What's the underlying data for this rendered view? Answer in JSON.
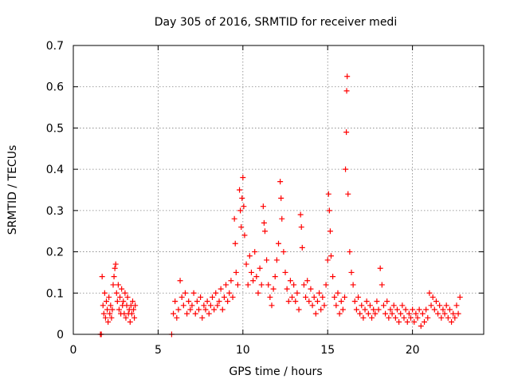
{
  "chart_data": {
    "type": "scatter",
    "title": "Day 305 of 2016, SRMTID for receiver medi",
    "xlabel": "GPS time / hours",
    "ylabel": "SRMTID / TECUs",
    "xlim": [
      0,
      24.2
    ],
    "ylim": [
      0,
      0.7
    ],
    "xticks": [
      0,
      5,
      10,
      15,
      20
    ],
    "xtick_labels": [
      "0",
      "5",
      "10",
      "15",
      "20"
    ],
    "yticks": [
      0,
      0.1,
      0.2,
      0.3,
      0.4,
      0.5,
      0.6,
      0.7
    ],
    "ytick_labels": [
      "0",
      "0.1",
      "0.2",
      "0.3",
      "0.4",
      "0.5",
      "0.6",
      "0.7"
    ],
    "grid": true,
    "marker": "plus",
    "series": [
      {
        "name": "SRMTID",
        "color": "#ff0000",
        "points": [
          [
            1.6,
            0.0
          ],
          [
            1.65,
            0.0
          ],
          [
            1.7,
            0.14
          ],
          [
            1.75,
            0.07
          ],
          [
            1.8,
            0.05
          ],
          [
            1.85,
            0.1
          ],
          [
            1.9,
            0.04
          ],
          [
            1.95,
            0.08
          ],
          [
            2.0,
            0.06
          ],
          [
            2.05,
            0.03
          ],
          [
            2.1,
            0.09
          ],
          [
            2.15,
            0.05
          ],
          [
            2.2,
            0.07
          ],
          [
            2.25,
            0.04
          ],
          [
            2.3,
            0.06
          ],
          [
            2.35,
            0.12
          ],
          [
            2.4,
            0.14
          ],
          [
            2.45,
            0.16
          ],
          [
            2.5,
            0.17
          ],
          [
            2.55,
            0.1
          ],
          [
            2.6,
            0.08
          ],
          [
            2.65,
            0.12
          ],
          [
            2.7,
            0.06
          ],
          [
            2.75,
            0.09
          ],
          [
            2.8,
            0.05
          ],
          [
            2.85,
            0.11
          ],
          [
            2.9,
            0.07
          ],
          [
            2.95,
            0.08
          ],
          [
            3.0,
            0.05
          ],
          [
            3.05,
            0.1
          ],
          [
            3.1,
            0.04
          ],
          [
            3.15,
            0.07
          ],
          [
            3.2,
            0.09
          ],
          [
            3.25,
            0.05
          ],
          [
            3.3,
            0.06
          ],
          [
            3.35,
            0.03
          ],
          [
            3.4,
            0.07
          ],
          [
            3.45,
            0.05
          ],
          [
            3.5,
            0.08
          ],
          [
            3.55,
            0.06
          ],
          [
            3.6,
            0.04
          ],
          [
            3.65,
            0.07
          ],
          [
            5.8,
            0.0
          ],
          [
            5.9,
            0.05
          ],
          [
            6.0,
            0.08
          ],
          [
            6.1,
            0.04
          ],
          [
            6.2,
            0.06
          ],
          [
            6.3,
            0.13
          ],
          [
            6.4,
            0.09
          ],
          [
            6.5,
            0.07
          ],
          [
            6.6,
            0.1
          ],
          [
            6.7,
            0.05
          ],
          [
            6.8,
            0.08
          ],
          [
            6.9,
            0.06
          ],
          [
            7.0,
            0.07
          ],
          [
            7.1,
            0.1
          ],
          [
            7.2,
            0.05
          ],
          [
            7.3,
            0.08
          ],
          [
            7.4,
            0.06
          ],
          [
            7.5,
            0.09
          ],
          [
            7.6,
            0.04
          ],
          [
            7.7,
            0.07
          ],
          [
            7.8,
            0.06
          ],
          [
            7.9,
            0.08
          ],
          [
            8.0,
            0.05
          ],
          [
            8.1,
            0.07
          ],
          [
            8.2,
            0.09
          ],
          [
            8.3,
            0.06
          ],
          [
            8.4,
            0.1
          ],
          [
            8.5,
            0.07
          ],
          [
            8.6,
            0.08
          ],
          [
            8.7,
            0.11
          ],
          [
            8.8,
            0.06
          ],
          [
            8.9,
            0.09
          ],
          [
            9.0,
            0.12
          ],
          [
            9.1,
            0.08
          ],
          [
            9.2,
            0.1
          ],
          [
            9.3,
            0.13
          ],
          [
            9.4,
            0.09
          ],
          [
            9.5,
            0.28
          ],
          [
            9.55,
            0.22
          ],
          [
            9.6,
            0.15
          ],
          [
            9.7,
            0.12
          ],
          [
            9.8,
            0.35
          ],
          [
            9.85,
            0.3
          ],
          [
            9.9,
            0.26
          ],
          [
            9.95,
            0.33
          ],
          [
            10.0,
            0.38
          ],
          [
            10.05,
            0.31
          ],
          [
            10.1,
            0.24
          ],
          [
            10.2,
            0.17
          ],
          [
            10.3,
            0.12
          ],
          [
            10.4,
            0.19
          ],
          [
            10.5,
            0.15
          ],
          [
            10.6,
            0.13
          ],
          [
            10.7,
            0.2
          ],
          [
            10.8,
            0.14
          ],
          [
            10.9,
            0.1
          ],
          [
            11.0,
            0.16
          ],
          [
            11.1,
            0.12
          ],
          [
            11.2,
            0.31
          ],
          [
            11.25,
            0.27
          ],
          [
            11.3,
            0.25
          ],
          [
            11.4,
            0.18
          ],
          [
            11.5,
            0.12
          ],
          [
            11.6,
            0.09
          ],
          [
            11.7,
            0.07
          ],
          [
            11.8,
            0.11
          ],
          [
            11.9,
            0.14
          ],
          [
            12.0,
            0.18
          ],
          [
            12.1,
            0.22
          ],
          [
            12.2,
            0.37
          ],
          [
            12.25,
            0.33
          ],
          [
            12.3,
            0.28
          ],
          [
            12.4,
            0.2
          ],
          [
            12.5,
            0.15
          ],
          [
            12.6,
            0.11
          ],
          [
            12.7,
            0.08
          ],
          [
            12.8,
            0.13
          ],
          [
            12.9,
            0.09
          ],
          [
            13.0,
            0.12
          ],
          [
            13.1,
            0.08
          ],
          [
            13.2,
            0.1
          ],
          [
            13.3,
            0.06
          ],
          [
            13.4,
            0.29
          ],
          [
            13.45,
            0.26
          ],
          [
            13.5,
            0.21
          ],
          [
            13.6,
            0.12
          ],
          [
            13.7,
            0.09
          ],
          [
            13.8,
            0.13
          ],
          [
            13.9,
            0.08
          ],
          [
            14.0,
            0.11
          ],
          [
            14.1,
            0.07
          ],
          [
            14.2,
            0.09
          ],
          [
            14.3,
            0.05
          ],
          [
            14.4,
            0.08
          ],
          [
            14.5,
            0.1
          ],
          [
            14.6,
            0.06
          ],
          [
            14.7,
            0.09
          ],
          [
            14.8,
            0.07
          ],
          [
            14.9,
            0.12
          ],
          [
            15.0,
            0.18
          ],
          [
            15.05,
            0.34
          ],
          [
            15.1,
            0.3
          ],
          [
            15.15,
            0.25
          ],
          [
            15.2,
            0.19
          ],
          [
            15.3,
            0.14
          ],
          [
            15.4,
            0.09
          ],
          [
            15.5,
            0.07
          ],
          [
            15.6,
            0.1
          ],
          [
            15.7,
            0.05
          ],
          [
            15.8,
            0.08
          ],
          [
            15.9,
            0.06
          ],
          [
            16.0,
            0.09
          ],
          [
            16.05,
            0.4
          ],
          [
            16.1,
            0.49
          ],
          [
            16.12,
            0.59
          ],
          [
            16.15,
            0.625
          ],
          [
            16.2,
            0.34
          ],
          [
            16.3,
            0.2
          ],
          [
            16.4,
            0.15
          ],
          [
            16.5,
            0.12
          ],
          [
            16.6,
            0.08
          ],
          [
            16.7,
            0.06
          ],
          [
            16.8,
            0.09
          ],
          [
            16.9,
            0.05
          ],
          [
            17.0,
            0.07
          ],
          [
            17.1,
            0.04
          ],
          [
            17.2,
            0.06
          ],
          [
            17.3,
            0.08
          ],
          [
            17.4,
            0.05
          ],
          [
            17.5,
            0.07
          ],
          [
            17.6,
            0.04
          ],
          [
            17.7,
            0.06
          ],
          [
            17.8,
            0.05
          ],
          [
            17.9,
            0.08
          ],
          [
            18.0,
            0.06
          ],
          [
            18.1,
            0.16
          ],
          [
            18.2,
            0.12
          ],
          [
            18.3,
            0.07
          ],
          [
            18.4,
            0.05
          ],
          [
            18.5,
            0.08
          ],
          [
            18.6,
            0.04
          ],
          [
            18.7,
            0.06
          ],
          [
            18.8,
            0.05
          ],
          [
            18.9,
            0.07
          ],
          [
            19.0,
            0.04
          ],
          [
            19.1,
            0.06
          ],
          [
            19.2,
            0.03
          ],
          [
            19.3,
            0.05
          ],
          [
            19.4,
            0.07
          ],
          [
            19.5,
            0.04
          ],
          [
            19.6,
            0.06
          ],
          [
            19.7,
            0.03
          ],
          [
            19.8,
            0.05
          ],
          [
            19.9,
            0.04
          ],
          [
            20.0,
            0.06
          ],
          [
            20.1,
            0.03
          ],
          [
            20.2,
            0.05
          ],
          [
            20.3,
            0.04
          ],
          [
            20.4,
            0.06
          ],
          [
            20.5,
            0.02
          ],
          [
            20.6,
            0.05
          ],
          [
            20.7,
            0.03
          ],
          [
            20.8,
            0.06
          ],
          [
            20.9,
            0.04
          ],
          [
            21.0,
            0.1
          ],
          [
            21.1,
            0.07
          ],
          [
            21.2,
            0.09
          ],
          [
            21.3,
            0.06
          ],
          [
            21.4,
            0.08
          ],
          [
            21.5,
            0.05
          ],
          [
            21.6,
            0.07
          ],
          [
            21.7,
            0.04
          ],
          [
            21.8,
            0.06
          ],
          [
            21.9,
            0.05
          ],
          [
            22.0,
            0.07
          ],
          [
            22.1,
            0.04
          ],
          [
            22.2,
            0.06
          ],
          [
            22.3,
            0.03
          ],
          [
            22.4,
            0.05
          ],
          [
            22.5,
            0.04
          ],
          [
            22.6,
            0.07
          ],
          [
            22.7,
            0.05
          ],
          [
            22.8,
            0.09
          ]
        ]
      }
    ]
  }
}
